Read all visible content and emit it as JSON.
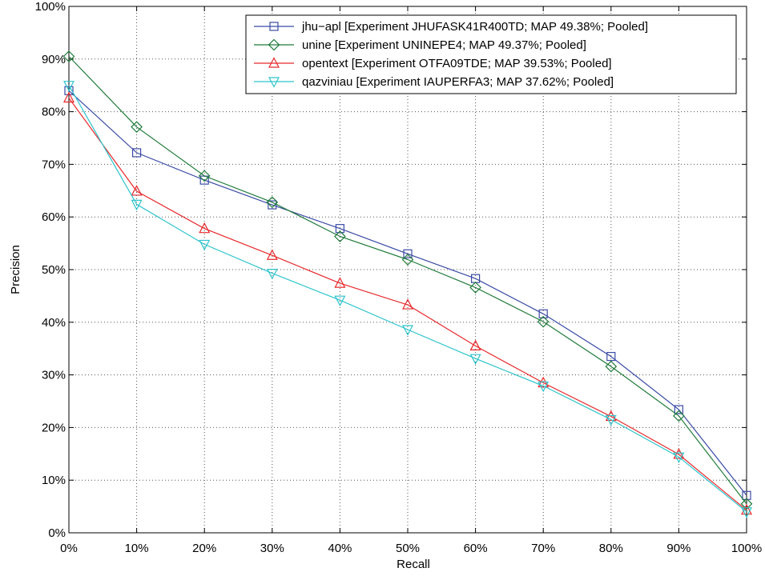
{
  "chart_data": {
    "type": "line",
    "xlabel": "Recall",
    "ylabel": "Precision",
    "x": [
      0,
      10,
      20,
      30,
      40,
      50,
      60,
      70,
      80,
      90,
      100
    ],
    "x_tick_labels": [
      "0%",
      "10%",
      "20%",
      "30%",
      "40%",
      "50%",
      "60%",
      "70%",
      "80%",
      "90%",
      "100%"
    ],
    "xlim": [
      0,
      100
    ],
    "y_ticks": [
      0,
      10,
      20,
      30,
      40,
      50,
      60,
      70,
      80,
      90,
      100
    ],
    "y_tick_labels": [
      "0%",
      "10%",
      "20%",
      "30%",
      "40%",
      "50%",
      "60%",
      "70%",
      "80%",
      "90%",
      "100%"
    ],
    "ylim": [
      0,
      100
    ],
    "grid": true,
    "legend_position": "top-right",
    "series": [
      {
        "name": "jhu−apl [Experiment JHUFASK41R400TD; MAP 49.38%; Pooled]",
        "color": "#3b4ba6",
        "marker": "square",
        "values": [
          84.0,
          72.2,
          67.0,
          62.3,
          57.8,
          53.0,
          48.3,
          41.6,
          33.5,
          23.4,
          7.1
        ]
      },
      {
        "name": "unine [Experiment UNINEPE4; MAP 49.37%; Pooled]",
        "color": "#1f7a3a",
        "marker": "diamond",
        "values": [
          90.5,
          77.1,
          67.8,
          62.8,
          56.3,
          51.9,
          46.6,
          40.1,
          31.6,
          22.2,
          5.5
        ]
      },
      {
        "name": "opentext [Experiment OTFA09TDE; MAP 39.53%; Pooled]",
        "color": "#e8282b",
        "marker": "triangle-up",
        "values": [
          82.6,
          64.9,
          57.8,
          52.7,
          47.4,
          43.3,
          35.5,
          28.5,
          22.1,
          14.9,
          4.3
        ]
      },
      {
        "name": "qazviniau [Experiment IAUPERFA3; MAP 37.62%; Pooled]",
        "color": "#2ec4cc",
        "marker": "triangle-down",
        "values": [
          85.0,
          62.4,
          54.8,
          49.3,
          44.2,
          38.6,
          33.1,
          27.9,
          21.5,
          14.4,
          4.0
        ]
      }
    ]
  }
}
